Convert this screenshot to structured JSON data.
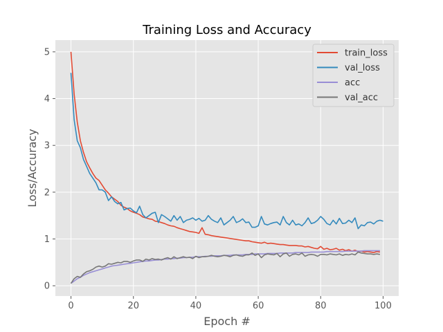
{
  "chart_data": {
    "type": "line",
    "title": "Training Loss and Accuracy",
    "xlabel": "Epoch #",
    "ylabel": "Loss/Accuracy",
    "xlim": [
      -5,
      105
    ],
    "ylim": [
      -0.22,
      5.25
    ],
    "xticks": [
      0,
      20,
      40,
      60,
      80,
      100
    ],
    "yticks": [
      0,
      1,
      2,
      3,
      4,
      5
    ],
    "grid": true,
    "legend_position": "top-right",
    "series": [
      {
        "name": "train_loss",
        "color": "#e24a33",
        "values": [
          5.0,
          4.1,
          3.5,
          3.1,
          2.85,
          2.65,
          2.52,
          2.4,
          2.3,
          2.25,
          2.15,
          2.05,
          1.98,
          1.9,
          1.85,
          1.8,
          1.72,
          1.68,
          1.65,
          1.6,
          1.57,
          1.55,
          1.52,
          1.47,
          1.45,
          1.43,
          1.42,
          1.38,
          1.37,
          1.35,
          1.33,
          1.3,
          1.28,
          1.27,
          1.24,
          1.22,
          1.2,
          1.18,
          1.16,
          1.15,
          1.14,
          1.12,
          1.24,
          1.1,
          1.09,
          1.07,
          1.06,
          1.05,
          1.04,
          1.03,
          1.02,
          1.01,
          1.0,
          0.99,
          0.98,
          0.97,
          0.96,
          0.96,
          0.94,
          0.93,
          0.92,
          0.91,
          0.93,
          0.9,
          0.91,
          0.9,
          0.89,
          0.88,
          0.88,
          0.87,
          0.86,
          0.86,
          0.86,
          0.85,
          0.85,
          0.83,
          0.84,
          0.82,
          0.8,
          0.79,
          0.84,
          0.78,
          0.8,
          0.77,
          0.78,
          0.8,
          0.76,
          0.78,
          0.75,
          0.77,
          0.74,
          0.76,
          0.73,
          0.74,
          0.72,
          0.73,
          0.72,
          0.71,
          0.73,
          0.72
        ]
      },
      {
        "name": "val_loss",
        "color": "#348abd",
        "values": [
          4.55,
          3.55,
          3.1,
          2.95,
          2.7,
          2.55,
          2.4,
          2.3,
          2.2,
          2.05,
          2.05,
          2.0,
          1.82,
          1.9,
          1.8,
          1.75,
          1.78,
          1.62,
          1.65,
          1.66,
          1.6,
          1.56,
          1.7,
          1.52,
          1.45,
          1.5,
          1.55,
          1.57,
          1.35,
          1.52,
          1.48,
          1.43,
          1.38,
          1.5,
          1.4,
          1.48,
          1.35,
          1.4,
          1.42,
          1.45,
          1.4,
          1.44,
          1.38,
          1.4,
          1.5,
          1.42,
          1.38,
          1.35,
          1.45,
          1.3,
          1.35,
          1.4,
          1.48,
          1.35,
          1.38,
          1.43,
          1.35,
          1.36,
          1.25,
          1.25,
          1.28,
          1.48,
          1.32,
          1.3,
          1.33,
          1.35,
          1.36,
          1.3,
          1.48,
          1.35,
          1.3,
          1.4,
          1.3,
          1.32,
          1.28,
          1.35,
          1.45,
          1.33,
          1.35,
          1.4,
          1.48,
          1.42,
          1.33,
          1.3,
          1.4,
          1.32,
          1.44,
          1.33,
          1.34,
          1.4,
          1.35,
          1.45,
          1.22,
          1.3,
          1.28,
          1.35,
          1.36,
          1.32,
          1.38,
          1.4,
          1.38
        ]
      },
      {
        "name": "acc",
        "color": "#988ed5",
        "values": [
          0.05,
          0.1,
          0.15,
          0.18,
          0.22,
          0.25,
          0.28,
          0.3,
          0.32,
          0.34,
          0.36,
          0.38,
          0.4,
          0.42,
          0.43,
          0.44,
          0.45,
          0.46,
          0.47,
          0.48,
          0.49,
          0.5,
          0.51,
          0.52,
          0.53,
          0.53,
          0.54,
          0.55,
          0.55,
          0.56,
          0.57,
          0.57,
          0.58,
          0.58,
          0.59,
          0.59,
          0.6,
          0.6,
          0.61,
          0.61,
          0.62,
          0.62,
          0.62,
          0.63,
          0.63,
          0.63,
          0.64,
          0.64,
          0.64,
          0.65,
          0.65,
          0.65,
          0.66,
          0.66,
          0.66,
          0.66,
          0.67,
          0.67,
          0.67,
          0.68,
          0.68,
          0.68,
          0.68,
          0.69,
          0.69,
          0.69,
          0.69,
          0.7,
          0.7,
          0.7,
          0.7,
          0.7,
          0.71,
          0.71,
          0.71,
          0.71,
          0.71,
          0.72,
          0.72,
          0.72,
          0.72,
          0.72,
          0.73,
          0.73,
          0.73,
          0.73,
          0.73,
          0.73,
          0.74,
          0.74,
          0.74,
          0.74,
          0.74,
          0.74,
          0.75,
          0.75,
          0.75,
          0.75,
          0.75,
          0.75
        ]
      },
      {
        "name": "val_acc",
        "color": "#777777",
        "values": [
          0.05,
          0.15,
          0.2,
          0.18,
          0.25,
          0.3,
          0.32,
          0.35,
          0.4,
          0.42,
          0.4,
          0.42,
          0.47,
          0.46,
          0.48,
          0.5,
          0.49,
          0.52,
          0.52,
          0.5,
          0.53,
          0.55,
          0.55,
          0.52,
          0.57,
          0.55,
          0.58,
          0.56,
          0.57,
          0.55,
          0.58,
          0.6,
          0.57,
          0.62,
          0.58,
          0.6,
          0.62,
          0.6,
          0.61,
          0.58,
          0.63,
          0.6,
          0.62,
          0.62,
          0.63,
          0.65,
          0.63,
          0.62,
          0.63,
          0.65,
          0.64,
          0.62,
          0.65,
          0.66,
          0.64,
          0.63,
          0.66,
          0.66,
          0.7,
          0.65,
          0.68,
          0.6,
          0.66,
          0.68,
          0.67,
          0.66,
          0.69,
          0.62,
          0.68,
          0.7,
          0.63,
          0.67,
          0.68,
          0.66,
          0.7,
          0.63,
          0.66,
          0.67,
          0.66,
          0.63,
          0.67,
          0.67,
          0.66,
          0.68,
          0.67,
          0.66,
          0.68,
          0.65,
          0.67,
          0.66,
          0.68,
          0.66,
          0.72,
          0.7,
          0.69,
          0.68,
          0.68,
          0.67,
          0.68,
          0.67
        ]
      }
    ]
  }
}
